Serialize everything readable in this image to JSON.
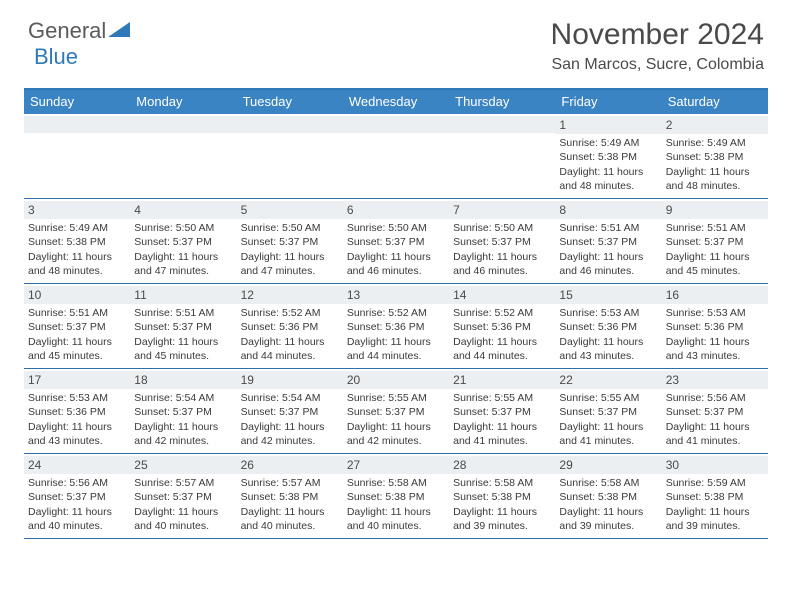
{
  "logo": {
    "general": "General",
    "blue": "Blue"
  },
  "title": "November 2024",
  "subtitle": "San Marcos, Sucre, Colombia",
  "colors": {
    "header_band": "#3b84c4",
    "accent": "#2f79b9",
    "day_band": "#eceff1",
    "text": "#3a3a3a"
  },
  "day_names": [
    "Sunday",
    "Monday",
    "Tuesday",
    "Wednesday",
    "Thursday",
    "Friday",
    "Saturday"
  ],
  "weeks": [
    [
      {
        "n": "",
        "sr": "",
        "ss": "",
        "dl": ""
      },
      {
        "n": "",
        "sr": "",
        "ss": "",
        "dl": ""
      },
      {
        "n": "",
        "sr": "",
        "ss": "",
        "dl": ""
      },
      {
        "n": "",
        "sr": "",
        "ss": "",
        "dl": ""
      },
      {
        "n": "",
        "sr": "",
        "ss": "",
        "dl": ""
      },
      {
        "n": "1",
        "sr": "Sunrise: 5:49 AM",
        "ss": "Sunset: 5:38 PM",
        "dl": "Daylight: 11 hours and 48 minutes."
      },
      {
        "n": "2",
        "sr": "Sunrise: 5:49 AM",
        "ss": "Sunset: 5:38 PM",
        "dl": "Daylight: 11 hours and 48 minutes."
      }
    ],
    [
      {
        "n": "3",
        "sr": "Sunrise: 5:49 AM",
        "ss": "Sunset: 5:38 PM",
        "dl": "Daylight: 11 hours and 48 minutes."
      },
      {
        "n": "4",
        "sr": "Sunrise: 5:50 AM",
        "ss": "Sunset: 5:37 PM",
        "dl": "Daylight: 11 hours and 47 minutes."
      },
      {
        "n": "5",
        "sr": "Sunrise: 5:50 AM",
        "ss": "Sunset: 5:37 PM",
        "dl": "Daylight: 11 hours and 47 minutes."
      },
      {
        "n": "6",
        "sr": "Sunrise: 5:50 AM",
        "ss": "Sunset: 5:37 PM",
        "dl": "Daylight: 11 hours and 46 minutes."
      },
      {
        "n": "7",
        "sr": "Sunrise: 5:50 AM",
        "ss": "Sunset: 5:37 PM",
        "dl": "Daylight: 11 hours and 46 minutes."
      },
      {
        "n": "8",
        "sr": "Sunrise: 5:51 AM",
        "ss": "Sunset: 5:37 PM",
        "dl": "Daylight: 11 hours and 46 minutes."
      },
      {
        "n": "9",
        "sr": "Sunrise: 5:51 AM",
        "ss": "Sunset: 5:37 PM",
        "dl": "Daylight: 11 hours and 45 minutes."
      }
    ],
    [
      {
        "n": "10",
        "sr": "Sunrise: 5:51 AM",
        "ss": "Sunset: 5:37 PM",
        "dl": "Daylight: 11 hours and 45 minutes."
      },
      {
        "n": "11",
        "sr": "Sunrise: 5:51 AM",
        "ss": "Sunset: 5:37 PM",
        "dl": "Daylight: 11 hours and 45 minutes."
      },
      {
        "n": "12",
        "sr": "Sunrise: 5:52 AM",
        "ss": "Sunset: 5:36 PM",
        "dl": "Daylight: 11 hours and 44 minutes."
      },
      {
        "n": "13",
        "sr": "Sunrise: 5:52 AM",
        "ss": "Sunset: 5:36 PM",
        "dl": "Daylight: 11 hours and 44 minutes."
      },
      {
        "n": "14",
        "sr": "Sunrise: 5:52 AM",
        "ss": "Sunset: 5:36 PM",
        "dl": "Daylight: 11 hours and 44 minutes."
      },
      {
        "n": "15",
        "sr": "Sunrise: 5:53 AM",
        "ss": "Sunset: 5:36 PM",
        "dl": "Daylight: 11 hours and 43 minutes."
      },
      {
        "n": "16",
        "sr": "Sunrise: 5:53 AM",
        "ss": "Sunset: 5:36 PM",
        "dl": "Daylight: 11 hours and 43 minutes."
      }
    ],
    [
      {
        "n": "17",
        "sr": "Sunrise: 5:53 AM",
        "ss": "Sunset: 5:36 PM",
        "dl": "Daylight: 11 hours and 43 minutes."
      },
      {
        "n": "18",
        "sr": "Sunrise: 5:54 AM",
        "ss": "Sunset: 5:37 PM",
        "dl": "Daylight: 11 hours and 42 minutes."
      },
      {
        "n": "19",
        "sr": "Sunrise: 5:54 AM",
        "ss": "Sunset: 5:37 PM",
        "dl": "Daylight: 11 hours and 42 minutes."
      },
      {
        "n": "20",
        "sr": "Sunrise: 5:55 AM",
        "ss": "Sunset: 5:37 PM",
        "dl": "Daylight: 11 hours and 42 minutes."
      },
      {
        "n": "21",
        "sr": "Sunrise: 5:55 AM",
        "ss": "Sunset: 5:37 PM",
        "dl": "Daylight: 11 hours and 41 minutes."
      },
      {
        "n": "22",
        "sr": "Sunrise: 5:55 AM",
        "ss": "Sunset: 5:37 PM",
        "dl": "Daylight: 11 hours and 41 minutes."
      },
      {
        "n": "23",
        "sr": "Sunrise: 5:56 AM",
        "ss": "Sunset: 5:37 PM",
        "dl": "Daylight: 11 hours and 41 minutes."
      }
    ],
    [
      {
        "n": "24",
        "sr": "Sunrise: 5:56 AM",
        "ss": "Sunset: 5:37 PM",
        "dl": "Daylight: 11 hours and 40 minutes."
      },
      {
        "n": "25",
        "sr": "Sunrise: 5:57 AM",
        "ss": "Sunset: 5:37 PM",
        "dl": "Daylight: 11 hours and 40 minutes."
      },
      {
        "n": "26",
        "sr": "Sunrise: 5:57 AM",
        "ss": "Sunset: 5:38 PM",
        "dl": "Daylight: 11 hours and 40 minutes."
      },
      {
        "n": "27",
        "sr": "Sunrise: 5:58 AM",
        "ss": "Sunset: 5:38 PM",
        "dl": "Daylight: 11 hours and 40 minutes."
      },
      {
        "n": "28",
        "sr": "Sunrise: 5:58 AM",
        "ss": "Sunset: 5:38 PM",
        "dl": "Daylight: 11 hours and 39 minutes."
      },
      {
        "n": "29",
        "sr": "Sunrise: 5:58 AM",
        "ss": "Sunset: 5:38 PM",
        "dl": "Daylight: 11 hours and 39 minutes."
      },
      {
        "n": "30",
        "sr": "Sunrise: 5:59 AM",
        "ss": "Sunset: 5:38 PM",
        "dl": "Daylight: 11 hours and 39 minutes."
      }
    ]
  ]
}
